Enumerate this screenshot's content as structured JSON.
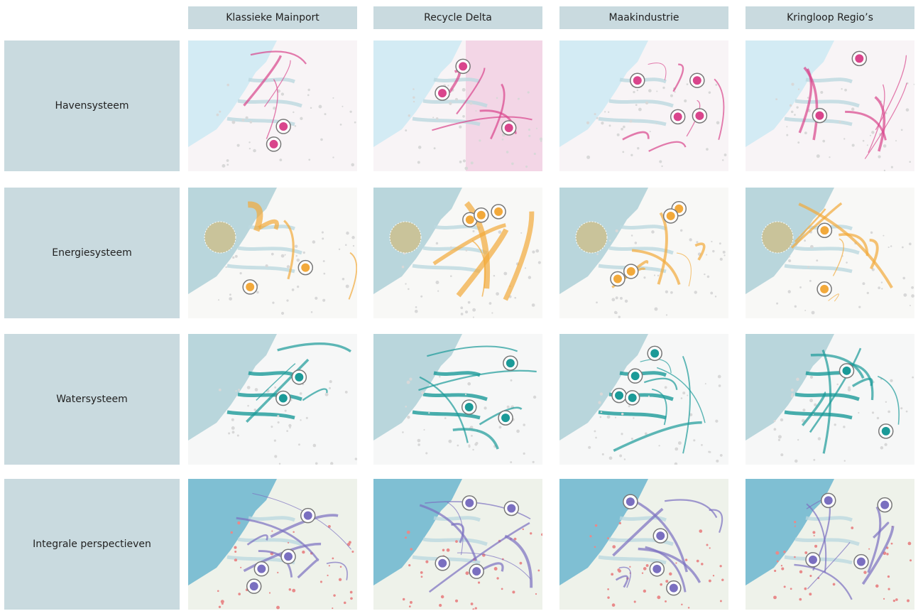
{
  "columns": [
    "Klassieke Mainport",
    "Recycle Delta",
    "Maakindustrie",
    "Kringloop Regio’s"
  ],
  "rows": [
    "Havensysteem",
    "Energiesysteem",
    "Watersysteem",
    "Integrale perspectieven"
  ]
}
